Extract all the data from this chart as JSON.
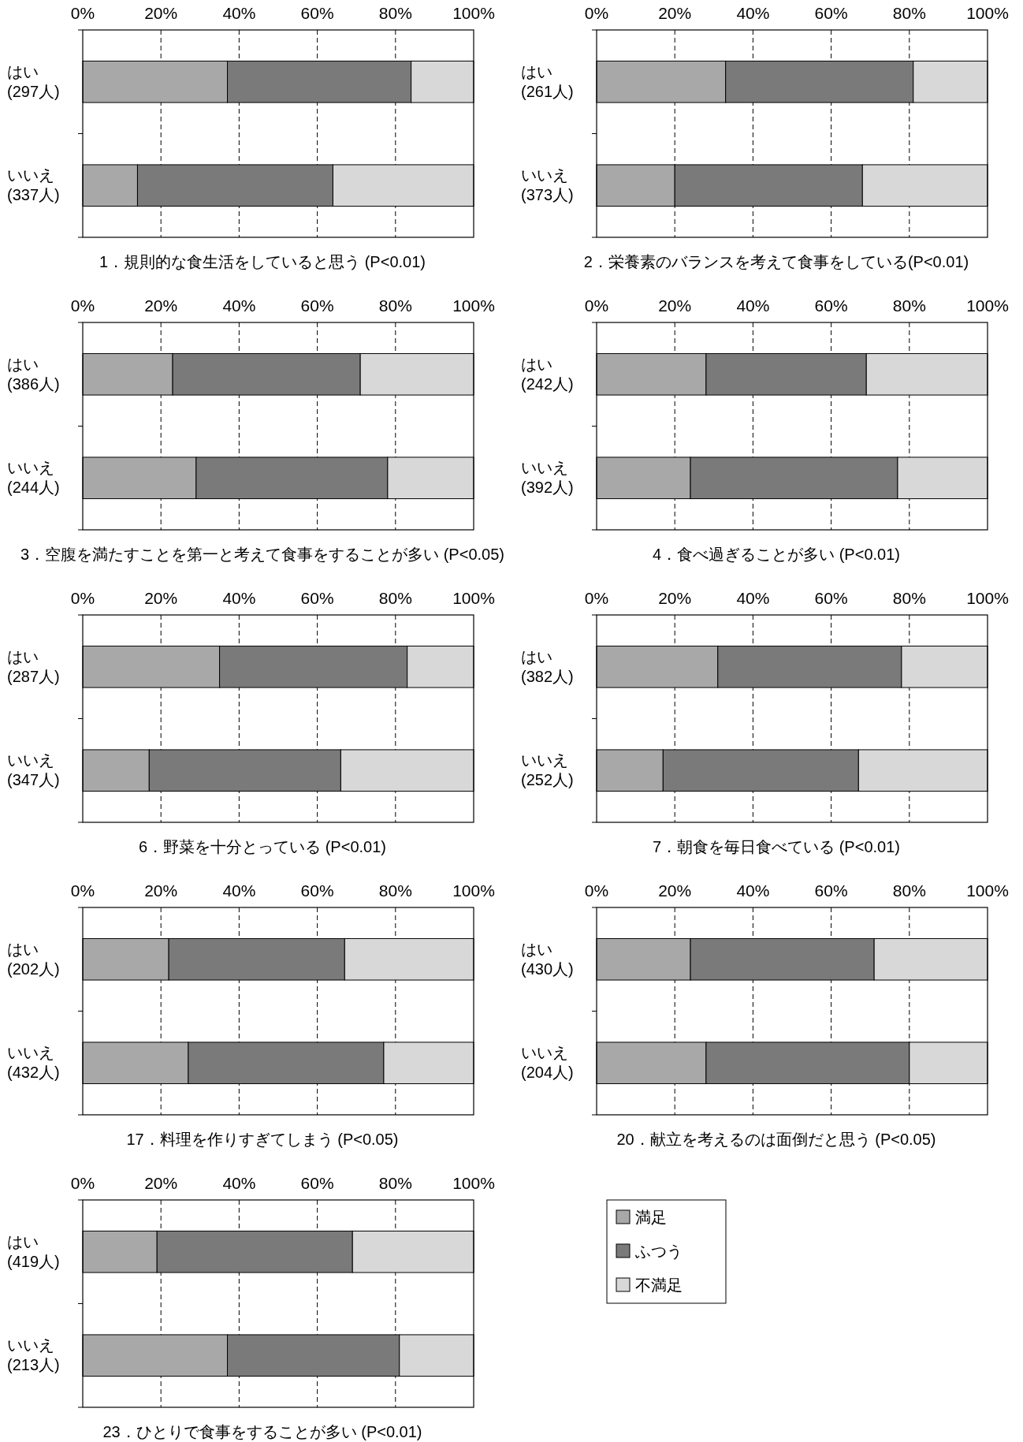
{
  "chart_data": [
    {
      "type": "bar",
      "orientation": "horizontal",
      "stacked": true,
      "grid": "x",
      "title": "1．規則的な食生活をしていると思う (P<0.01)",
      "categories": [
        "はい\n(297人)",
        "いいえ\n(337人)"
      ],
      "xlim": [
        0,
        100
      ],
      "xticks": [
        {
          "value": 0,
          "label": "0%"
        },
        {
          "value": 20,
          "label": "20%"
        },
        {
          "value": 40,
          "label": "40%"
        },
        {
          "value": 60,
          "label": "60%"
        },
        {
          "value": 80,
          "label": "80%"
        },
        {
          "value": 100,
          "label": "100%"
        }
      ],
      "series": [
        {
          "color": "#a8a8a8",
          "values": [
            37,
            14
          ]
        },
        {
          "color": "#7a7a7a",
          "values": [
            47,
            50
          ]
        },
        {
          "color": "#d8d8d8",
          "values": [
            16,
            36
          ]
        }
      ]
    },
    {
      "type": "bar",
      "orientation": "horizontal",
      "stacked": true,
      "grid": "x",
      "title": "2．栄養素のバランスを考えて食事をしている(P<0.01)",
      "categories": [
        "はい\n(261人)",
        "いいえ\n(373人)"
      ],
      "xlim": [
        0,
        100
      ],
      "xticks": [
        {
          "value": 0,
          "label": "0%"
        },
        {
          "value": 20,
          "label": "20%"
        },
        {
          "value": 40,
          "label": "40%"
        },
        {
          "value": 60,
          "label": "60%"
        },
        {
          "value": 80,
          "label": "80%"
        },
        {
          "value": 100,
          "label": "100%"
        }
      ],
      "series": [
        {
          "color": "#a8a8a8",
          "values": [
            33,
            20
          ]
        },
        {
          "color": "#7a7a7a",
          "values": [
            48,
            48
          ]
        },
        {
          "color": "#d8d8d8",
          "values": [
            19,
            32
          ]
        }
      ]
    },
    {
      "type": "bar",
      "orientation": "horizontal",
      "stacked": true,
      "grid": "x",
      "title": "3．空腹を満たすことを第一と考えて食事をすることが多い (P<0.05)",
      "categories": [
        "はい\n(386人)",
        "いいえ\n(244人)"
      ],
      "xlim": [
        0,
        100
      ],
      "xticks": [
        {
          "value": 0,
          "label": "0%"
        },
        {
          "value": 20,
          "label": "20%"
        },
        {
          "value": 40,
          "label": "40%"
        },
        {
          "value": 60,
          "label": "60%"
        },
        {
          "value": 80,
          "label": "80%"
        },
        {
          "value": 100,
          "label": "100%"
        }
      ],
      "series": [
        {
          "color": "#a8a8a8",
          "values": [
            23,
            29
          ]
        },
        {
          "color": "#7a7a7a",
          "values": [
            48,
            49
          ]
        },
        {
          "color": "#d8d8d8",
          "values": [
            29,
            22
          ]
        }
      ]
    },
    {
      "type": "bar",
      "orientation": "horizontal",
      "stacked": true,
      "grid": "x",
      "title": "4．食べ過ぎることが多い (P<0.01)",
      "categories": [
        "はい\n(242人)",
        "いいえ\n(392人)"
      ],
      "xlim": [
        0,
        100
      ],
      "xticks": [
        {
          "value": 0,
          "label": "0%"
        },
        {
          "value": 20,
          "label": "20%"
        },
        {
          "value": 40,
          "label": "40%"
        },
        {
          "value": 60,
          "label": "60%"
        },
        {
          "value": 80,
          "label": "80%"
        },
        {
          "value": 100,
          "label": "100%"
        }
      ],
      "series": [
        {
          "color": "#a8a8a8",
          "values": [
            28,
            24
          ]
        },
        {
          "color": "#7a7a7a",
          "values": [
            41,
            53
          ]
        },
        {
          "color": "#d8d8d8",
          "values": [
            31,
            23
          ]
        }
      ]
    },
    {
      "type": "bar",
      "orientation": "horizontal",
      "stacked": true,
      "grid": "x",
      "title": "6．野菜を十分とっている (P<0.01)",
      "categories": [
        "はい\n(287人)",
        "いいえ\n(347人)"
      ],
      "xlim": [
        0,
        100
      ],
      "xticks": [
        {
          "value": 0,
          "label": "0%"
        },
        {
          "value": 20,
          "label": "20%"
        },
        {
          "value": 40,
          "label": "40%"
        },
        {
          "value": 60,
          "label": "60%"
        },
        {
          "value": 80,
          "label": "80%"
        },
        {
          "value": 100,
          "label": "100%"
        }
      ],
      "series": [
        {
          "color": "#a8a8a8",
          "values": [
            35,
            17
          ]
        },
        {
          "color": "#7a7a7a",
          "values": [
            48,
            49
          ]
        },
        {
          "color": "#d8d8d8",
          "values": [
            17,
            34
          ]
        }
      ]
    },
    {
      "type": "bar",
      "orientation": "horizontal",
      "stacked": true,
      "grid": "x",
      "title": "7．朝食を毎日食べている (P<0.01)",
      "categories": [
        "はい\n(382人)",
        "いいえ\n(252人)"
      ],
      "xlim": [
        0,
        100
      ],
      "xticks": [
        {
          "value": 0,
          "label": "0%"
        },
        {
          "value": 20,
          "label": "20%"
        },
        {
          "value": 40,
          "label": "40%"
        },
        {
          "value": 60,
          "label": "60%"
        },
        {
          "value": 80,
          "label": "80%"
        },
        {
          "value": 100,
          "label": "100%"
        }
      ],
      "series": [
        {
          "color": "#a8a8a8",
          "values": [
            31,
            17
          ]
        },
        {
          "color": "#7a7a7a",
          "values": [
            47,
            50
          ]
        },
        {
          "color": "#d8d8d8",
          "values": [
            22,
            33
          ]
        }
      ]
    },
    {
      "type": "bar",
      "orientation": "horizontal",
      "stacked": true,
      "grid": "x",
      "title": "17．料理を作りすぎてしまう (P<0.05)",
      "categories": [
        "はい\n(202人)",
        "いいえ\n(432人)"
      ],
      "xlim": [
        0,
        100
      ],
      "xticks": [
        {
          "value": 0,
          "label": "0%"
        },
        {
          "value": 20,
          "label": "20%"
        },
        {
          "value": 40,
          "label": "40%"
        },
        {
          "value": 60,
          "label": "60%"
        },
        {
          "value": 80,
          "label": "80%"
        },
        {
          "value": 100,
          "label": "100%"
        }
      ],
      "series": [
        {
          "color": "#a8a8a8",
          "values": [
            22,
            27
          ]
        },
        {
          "color": "#7a7a7a",
          "values": [
            45,
            50
          ]
        },
        {
          "color": "#d8d8d8",
          "values": [
            33,
            23
          ]
        }
      ]
    },
    {
      "type": "bar",
      "orientation": "horizontal",
      "stacked": true,
      "grid": "x",
      "title": "20．献立を考えるのは面倒だと思う (P<0.05)",
      "categories": [
        "はい\n(430人)",
        "いいえ\n(204人)"
      ],
      "xlim": [
        0,
        100
      ],
      "xticks": [
        {
          "value": 0,
          "label": "0%"
        },
        {
          "value": 20,
          "label": "20%"
        },
        {
          "value": 40,
          "label": "40%"
        },
        {
          "value": 60,
          "label": "60%"
        },
        {
          "value": 80,
          "label": "80%"
        },
        {
          "value": 100,
          "label": "100%"
        }
      ],
      "series": [
        {
          "color": "#a8a8a8",
          "values": [
            24,
            28
          ]
        },
        {
          "color": "#7a7a7a",
          "values": [
            47,
            52
          ]
        },
        {
          "color": "#d8d8d8",
          "values": [
            29,
            20
          ]
        }
      ]
    },
    {
      "type": "bar",
      "orientation": "horizontal",
      "stacked": true,
      "grid": "x",
      "legend": "right",
      "title": "23．ひとりで食事をすることが多い (P<0.01)",
      "categories": [
        "はい\n(419人)",
        "いいえ\n(213人)"
      ],
      "xlim": [
        0,
        100
      ],
      "xticks": [
        {
          "value": 0,
          "label": "0%"
        },
        {
          "value": 20,
          "label": "20%"
        },
        {
          "value": 40,
          "label": "40%"
        },
        {
          "value": 60,
          "label": "60%"
        },
        {
          "value": 80,
          "label": "80%"
        },
        {
          "value": 100,
          "label": "100%"
        }
      ],
      "series": [
        {
          "name": "満足",
          "color": "#a8a8a8",
          "values": [
            19,
            37
          ]
        },
        {
          "name": "ふつう",
          "color": "#7a7a7a",
          "values": [
            50,
            44
          ]
        },
        {
          "name": "不満足",
          "color": "#d8d8d8",
          "values": [
            31,
            19
          ]
        }
      ]
    }
  ]
}
